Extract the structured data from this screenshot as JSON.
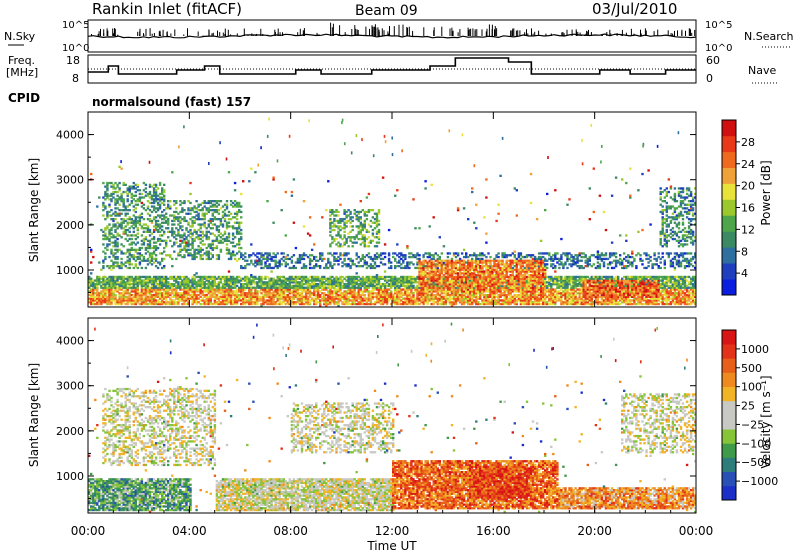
{
  "header": {
    "station": "Rankin Inlet (fitACF)",
    "beam": "Beam 09",
    "date": "03/Jul/2010"
  },
  "top_panels": {
    "nsky_label": "N.Sky",
    "nsearch_label": "N.Search",
    "nsky_ticks": [
      "10^5",
      "10^0"
    ],
    "freq_label": "Freq.",
    "freq_unit": "[MHz]",
    "freq_ticks": [
      "18",
      "8"
    ],
    "nave_label": "Nave",
    "nave_ticks": [
      "60",
      "0"
    ],
    "cpid_label": "CPID",
    "cpid_value": "normalsound (fast) 157"
  },
  "colors": {
    "power_scale": [
      "#0a1ee0",
      "#1f3fbf",
      "#2e6fa0",
      "#3c8a63",
      "#4da74a",
      "#9bc82d",
      "#e8e23a",
      "#f0a23a",
      "#ef6a1e",
      "#e83a18",
      "#d01010"
    ],
    "velocity_scale": [
      "#1c2fc8",
      "#2950b6",
      "#2f7d7a",
      "#3f9a4a",
      "#86c43a",
      "#c8c8c4",
      "#c8c8c4",
      "#f2b427",
      "#ee8a1f",
      "#e85f1a",
      "#e3321a",
      "#d81414"
    ]
  },
  "chart_data": [
    {
      "type": "heatmap",
      "title": "",
      "xlabel": "Time UT",
      "ylabel": "Slant Range [km]",
      "x_range_hours": [
        0,
        24
      ],
      "x_ticks": [
        "00:00",
        "04:00",
        "08:00",
        "12:00",
        "16:00",
        "20:00",
        "00:00"
      ],
      "y_range_km": [
        180,
        4500
      ],
      "y_ticks": [
        1000,
        2000,
        3000,
        4000
      ],
      "colorbar_label": "Power [dB]",
      "colorbar_ticks": [
        "28",
        "24",
        "20",
        "16",
        "12",
        "8",
        "4"
      ],
      "colorbar_range": [
        0,
        30
      ],
      "regions": [
        {
          "t0": 0.0,
          "t1": 24.0,
          "r0": 200,
          "r1": 560,
          "level": 0.7
        },
        {
          "t0": 0.0,
          "t1": 24.0,
          "r0": 560,
          "r1": 820,
          "level": 0.4
        },
        {
          "t0": 0.5,
          "t1": 3.0,
          "r0": 1000,
          "r1": 2900,
          "level": 0.35
        },
        {
          "t0": 3.0,
          "t1": 6.0,
          "r0": 1200,
          "r1": 2500,
          "level": 0.35
        },
        {
          "t0": 6.0,
          "t1": 24.0,
          "r0": 1000,
          "r1": 1350,
          "level": 0.25
        },
        {
          "t0": 9.5,
          "t1": 11.5,
          "r0": 1500,
          "r1": 2300,
          "level": 0.4
        },
        {
          "t0": 13.0,
          "t1": 18.0,
          "r0": 500,
          "r1": 1200,
          "level": 0.75
        },
        {
          "t0": 19.5,
          "t1": 22.5,
          "r0": 350,
          "r1": 750,
          "level": 0.8
        },
        {
          "t0": 22.5,
          "t1": 24.0,
          "r0": 1500,
          "r1": 2800,
          "level": 0.3
        }
      ]
    },
    {
      "type": "heatmap",
      "title": "",
      "xlabel": "Time UT",
      "ylabel": "Slant Range [km]",
      "x_range_hours": [
        0,
        24
      ],
      "x_ticks": [
        "00:00",
        "04:00",
        "08:00",
        "12:00",
        "16:00",
        "20:00",
        "00:00"
      ],
      "y_range_km": [
        180,
        4500
      ],
      "y_ticks": [
        1000,
        2000,
        3000,
        4000
      ],
      "colorbar_label": "Velocity [m s⁻¹]",
      "colorbar_ticks": [
        "1000",
        "500",
        "100",
        "25",
        "−25",
        "−100",
        "−500",
        "−1000"
      ],
      "colorbar_range": [
        -1200,
        1200
      ],
      "regions": [
        {
          "t0": 0.0,
          "t1": 4.0,
          "r0": 200,
          "r1": 900,
          "level": 0.3
        },
        {
          "t0": 0.5,
          "t1": 5.0,
          "r0": 1200,
          "r1": 2900,
          "level": 0.5
        },
        {
          "t0": 5.0,
          "t1": 12.0,
          "r0": 200,
          "r1": 900,
          "level": 0.5
        },
        {
          "t0": 8.0,
          "t1": 12.0,
          "r0": 1500,
          "r1": 2600,
          "level": 0.5
        },
        {
          "t0": 12.0,
          "t1": 18.5,
          "r0": 250,
          "r1": 1300,
          "level": 0.78
        },
        {
          "t0": 15.0,
          "t1": 17.5,
          "r0": 500,
          "r1": 1200,
          "level": 0.85
        },
        {
          "t0": 18.5,
          "t1": 24.0,
          "r0": 250,
          "r1": 700,
          "level": 0.7
        },
        {
          "t0": 21.0,
          "t1": 24.0,
          "r0": 1500,
          "r1": 2800,
          "level": 0.5
        }
      ]
    }
  ]
}
